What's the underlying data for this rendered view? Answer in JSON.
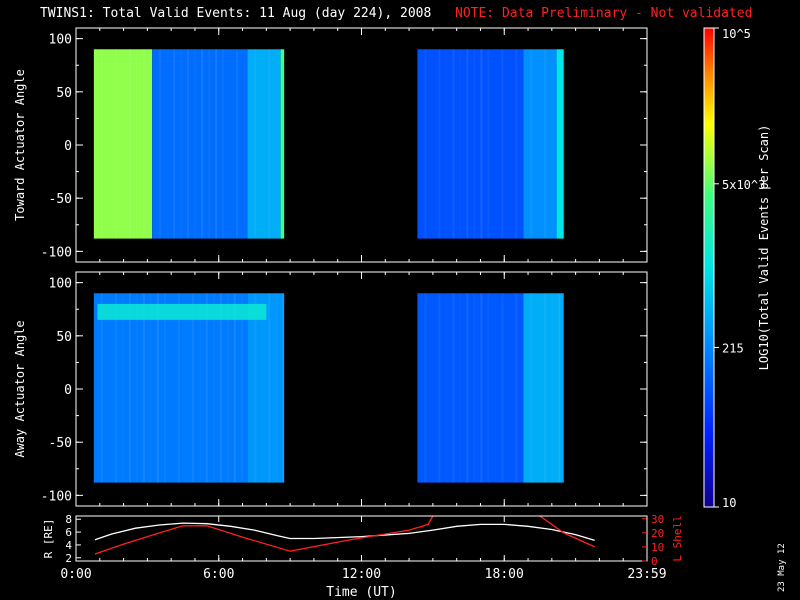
{
  "title": "TWINS1: Total Valid Events: 11 Aug (day 224), 2008",
  "note": "NOTE: Data Preliminary - Not validated",
  "date_stamp": "23 May 12",
  "colorbar": {
    "label": "LOG10(Total Valid Events per Scan)",
    "tick_labels": [
      "10",
      "215",
      "5x10^3",
      "10^5"
    ],
    "tick_values": [
      10,
      215,
      5000,
      100000
    ],
    "scale": "log",
    "colormap": "rainbow (blue to red)"
  },
  "chart_data": [
    {
      "type": "heatmap",
      "panel": "toward",
      "ylabel": "Toward Actuator Angle",
      "xlim": [
        0,
        24
      ],
      "ylim": [
        -110,
        110
      ],
      "yticks": [
        -100,
        -50,
        0,
        50,
        100
      ],
      "y_range_data": [
        -88,
        90
      ],
      "segments": [
        {
          "x_start": 0.75,
          "x_end": 3.2,
          "log_value": 3.85,
          "description": "high counts (yellow)"
        },
        {
          "x_start": 3.2,
          "x_end": 7.2,
          "log_value": 2.15
        },
        {
          "x_start": 7.2,
          "x_end": 8.6,
          "log_value": 2.6
        },
        {
          "x_start": 8.6,
          "x_end": 8.75,
          "log_value": 3.6
        },
        {
          "x_start": 14.35,
          "x_end": 18.8,
          "log_value": 1.95
        },
        {
          "x_start": 18.8,
          "x_end": 20.2,
          "log_value": 2.4
        },
        {
          "x_start": 20.2,
          "x_end": 20.5,
          "log_value": 3.0
        }
      ]
    },
    {
      "type": "heatmap",
      "panel": "away",
      "ylabel": "Away Actuator Angle",
      "xlim": [
        0,
        24
      ],
      "ylim": [
        -110,
        110
      ],
      "yticks": [
        -100,
        -50,
        0,
        50,
        100
      ],
      "y_range_data": [
        -88,
        90
      ],
      "segments": [
        {
          "x_start": 0.75,
          "x_end": 7.2,
          "log_value": 2.25
        },
        {
          "x_start": 7.2,
          "x_end": 8.75,
          "log_value": 2.45
        },
        {
          "x_start": 14.35,
          "x_end": 18.8,
          "log_value": 2.0
        },
        {
          "x_start": 18.8,
          "x_end": 20.5,
          "log_value": 2.6
        }
      ],
      "features": [
        {
          "x_start": 0.9,
          "x_end": 8.0,
          "y_start": 65,
          "y_end": 80,
          "log_value": 3.1,
          "description": "brighter band near top"
        }
      ]
    },
    {
      "type": "line",
      "panel": "orbit",
      "xlabel": "Time (UT)",
      "xlim": [
        0,
        24
      ],
      "x_tick_labels": [
        "0:00",
        "6:00",
        "12:00",
        "18:00",
        "23:59"
      ],
      "x_ticks": [
        0,
        6,
        12,
        18,
        24
      ],
      "y_left": {
        "label": "R [RE]",
        "ticks": [
          2,
          4,
          6,
          8
        ],
        "ylim": [
          1.5,
          8.5
        ]
      },
      "y_right": {
        "label": "L Shell",
        "ticks": [
          0,
          10,
          20,
          30
        ],
        "ylim": [
          0,
          32
        ],
        "color": "#ff2020"
      },
      "series": [
        {
          "axis": "left",
          "color": "#ffffff",
          "x": [
            0.8,
            1.5,
            2.5,
            3.5,
            4.5,
            5.5,
            6.5,
            7.5,
            8.5,
            9.0,
            10,
            12,
            14,
            15,
            16,
            17,
            18,
            19,
            20,
            21,
            21.8
          ],
          "y": [
            4.8,
            5.7,
            6.6,
            7.1,
            7.4,
            7.3,
            6.9,
            6.3,
            5.4,
            5.0,
            5.0,
            5.3,
            5.8,
            6.3,
            6.9,
            7.2,
            7.2,
            6.9,
            6.4,
            5.6,
            4.7
          ]
        },
        {
          "axis": "right",
          "color": "#ff2020",
          "x": [
            0.8,
            2.0,
            3.5,
            4.5,
            5.5,
            7.0,
            9.0,
            11.5,
            14.0,
            14.8,
            15.0
          ],
          "y": [
            5,
            12,
            20,
            25,
            25,
            17,
            7,
            15,
            22,
            26,
            32
          ]
        },
        {
          "axis": "right",
          "color": "#ff2020",
          "x": [
            19.5,
            20.5,
            21.8
          ],
          "y": [
            32,
            20,
            10
          ]
        }
      ]
    }
  ]
}
